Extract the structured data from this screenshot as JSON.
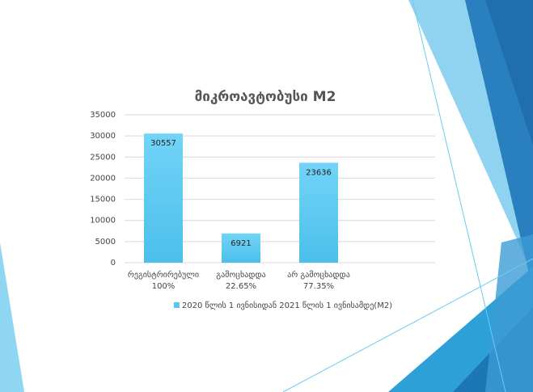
{
  "chart_data": {
    "type": "bar",
    "title": "მიკროავტობუსი M2",
    "categories": [
      [
        "რეგისტრირებული",
        "100%"
      ],
      [
        "გამოცხადდა",
        "22.65%"
      ],
      [
        "არ გამოცხადდა",
        "77.35%"
      ],
      null
    ],
    "series": [
      {
        "name": "2020 წლის 1 ივნისიდან 2021 წლის 1 ივნისამდე(M2)",
        "color": "#56c5ef",
        "values": [
          30557,
          6921,
          23636,
          null
        ]
      }
    ],
    "ylim": [
      0,
      35000
    ],
    "yticks": [
      0,
      5000,
      10000,
      15000,
      20000,
      25000,
      30000,
      35000
    ],
    "grid": true,
    "legend": "bottom"
  }
}
